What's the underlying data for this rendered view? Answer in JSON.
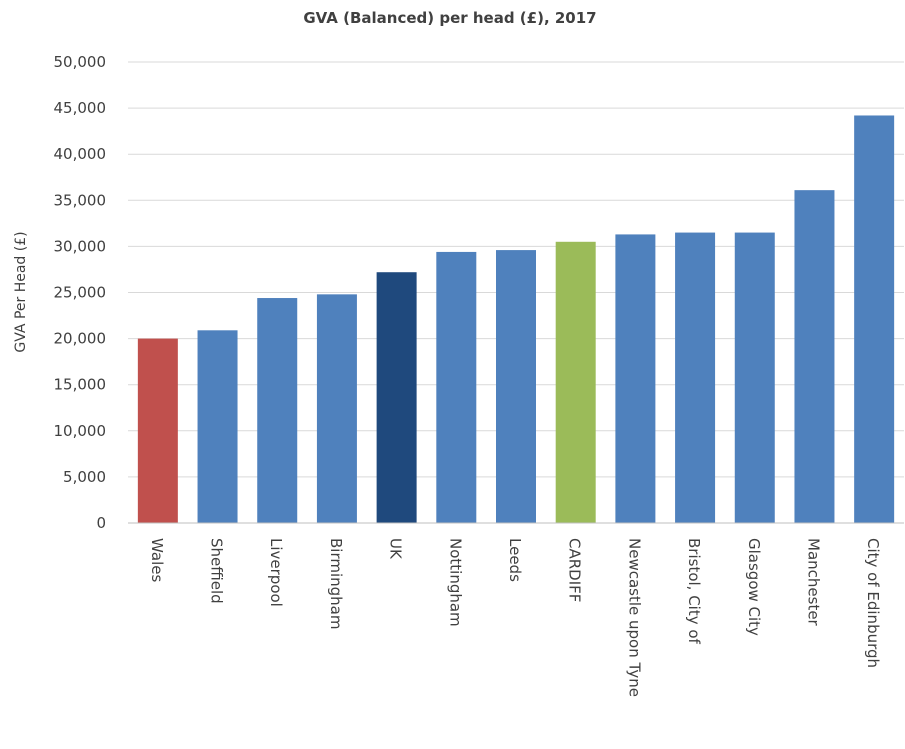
{
  "chart_data": {
    "type": "bar",
    "title": "GVA (Balanced)  per head (£), 2017",
    "xlabel": "",
    "ylabel": "GVA Per Head (£)",
    "ylim": [
      0,
      50000
    ],
    "yticks": [
      0,
      5000,
      10000,
      15000,
      20000,
      25000,
      30000,
      35000,
      40000,
      45000,
      50000
    ],
    "ytick_labels": [
      "0",
      "5,000",
      "10,000",
      "15,000",
      "20,000",
      "25,000",
      "30,000",
      "35,000",
      "40,000",
      "45,000",
      "50,000"
    ],
    "grid": true,
    "legend": "none",
    "categories": [
      "Wales",
      "Sheffield",
      "Liverpool",
      "Birmingham",
      "UK",
      "Nottingham",
      "Leeds",
      "CARDIFF",
      "Newcastle upon Tyne",
      "Bristol, City of",
      "Glasgow City",
      "Manchester",
      "City of Edinburgh"
    ],
    "values": [
      20000,
      20900,
      24400,
      24800,
      27200,
      29400,
      29600,
      30500,
      31300,
      31500,
      31500,
      36100,
      44200
    ],
    "colors": [
      "#c0504d",
      "#4f81bd",
      "#4f81bd",
      "#4f81bd",
      "#1f497d",
      "#4f81bd",
      "#4f81bd",
      "#9bbb59",
      "#4f81bd",
      "#4f81bd",
      "#4f81bd",
      "#4f81bd",
      "#4f81bd"
    ]
  }
}
